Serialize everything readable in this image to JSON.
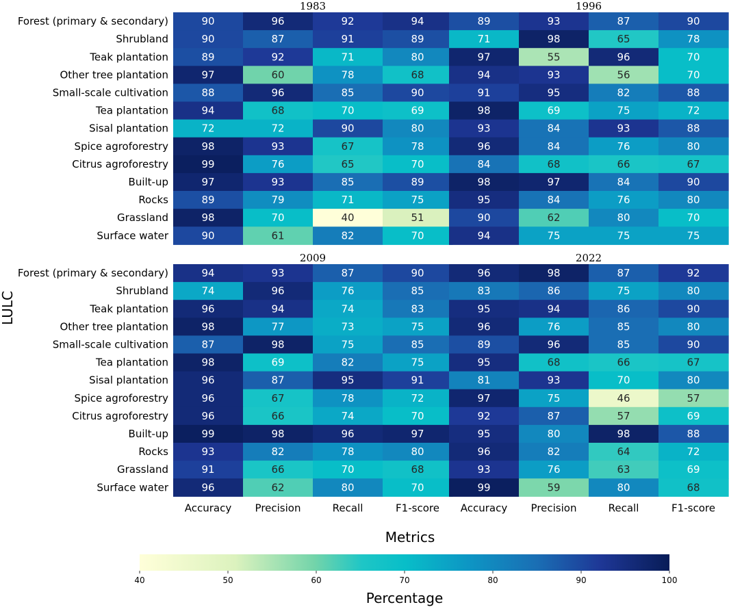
{
  "chart_data": {
    "type": "heatmap",
    "ylabel": "LULC",
    "xlabel": "Metrics",
    "colorbar": {
      "label": "Percentage",
      "min": 40,
      "max": 100,
      "ticks": [
        "40",
        "50",
        "60",
        "70",
        "80",
        "90",
        "100"
      ],
      "colormap": "YlGnBu"
    },
    "categories": [
      "Forest (primary & secondary)",
      "Shrubland",
      "Teak plantation",
      "Other tree plantation",
      "Small-scale cultivation",
      "Tea plantation",
      "Sisal plantation",
      "Spice agroforestry",
      "Citrus agroforestry",
      "Built-up",
      "Rocks",
      "Grassland",
      "Surface water"
    ],
    "metrics": [
      "Accuracy",
      "Precision",
      "Recall",
      "F1-score"
    ],
    "panels": [
      {
        "title": "1983",
        "values": [
          [
            90,
            96,
            92,
            94
          ],
          [
            90,
            87,
            91,
            89
          ],
          [
            89,
            92,
            71,
            80
          ],
          [
            97,
            60,
            78,
            68
          ],
          [
            88,
            96,
            85,
            90
          ],
          [
            94,
            68,
            70,
            69
          ],
          [
            72,
            72,
            90,
            80
          ],
          [
            98,
            93,
            67,
            78
          ],
          [
            99,
            76,
            65,
            70
          ],
          [
            97,
            93,
            85,
            89
          ],
          [
            89,
            79,
            71,
            75
          ],
          [
            98,
            70,
            40,
            51
          ],
          [
            90,
            61,
            82,
            70
          ]
        ]
      },
      {
        "title": "1996",
        "values": [
          [
            89,
            93,
            87,
            90
          ],
          [
            71,
            98,
            65,
            78
          ],
          [
            97,
            55,
            96,
            70
          ],
          [
            94,
            93,
            56,
            70
          ],
          [
            91,
            95,
            82,
            88
          ],
          [
            98,
            69,
            75,
            72
          ],
          [
            93,
            84,
            93,
            88
          ],
          [
            96,
            84,
            76,
            80
          ],
          [
            84,
            68,
            66,
            67
          ],
          [
            98,
            97,
            84,
            90
          ],
          [
            95,
            84,
            76,
            80
          ],
          [
            90,
            62,
            80,
            70
          ],
          [
            94,
            75,
            75,
            75
          ]
        ]
      },
      {
        "title": "2009",
        "values": [
          [
            94,
            93,
            87,
            90
          ],
          [
            74,
            96,
            76,
            85
          ],
          [
            96,
            94,
            74,
            83
          ],
          [
            98,
            77,
            73,
            75
          ],
          [
            87,
            98,
            75,
            85
          ],
          [
            98,
            69,
            82,
            75
          ],
          [
            96,
            87,
            95,
            91
          ],
          [
            96,
            67,
            78,
            72
          ],
          [
            96,
            66,
            74,
            70
          ],
          [
            99,
            98,
            96,
            97
          ],
          [
            93,
            82,
            78,
            80
          ],
          [
            91,
            66,
            70,
            68
          ],
          [
            96,
            62,
            80,
            70
          ]
        ]
      },
      {
        "title": "2022",
        "values": [
          [
            96,
            98,
            87,
            92
          ],
          [
            83,
            86,
            75,
            80
          ],
          [
            95,
            94,
            86,
            90
          ],
          [
            96,
            76,
            85,
            80
          ],
          [
            89,
            96,
            85,
            90
          ],
          [
            95,
            68,
            66,
            67
          ],
          [
            81,
            93,
            70,
            80
          ],
          [
            97,
            75,
            46,
            57
          ],
          [
            92,
            87,
            57,
            69
          ],
          [
            95,
            80,
            98,
            88
          ],
          [
            96,
            82,
            64,
            72
          ],
          [
            93,
            76,
            63,
            69
          ],
          [
            99,
            59,
            80,
            68
          ]
        ]
      }
    ]
  }
}
